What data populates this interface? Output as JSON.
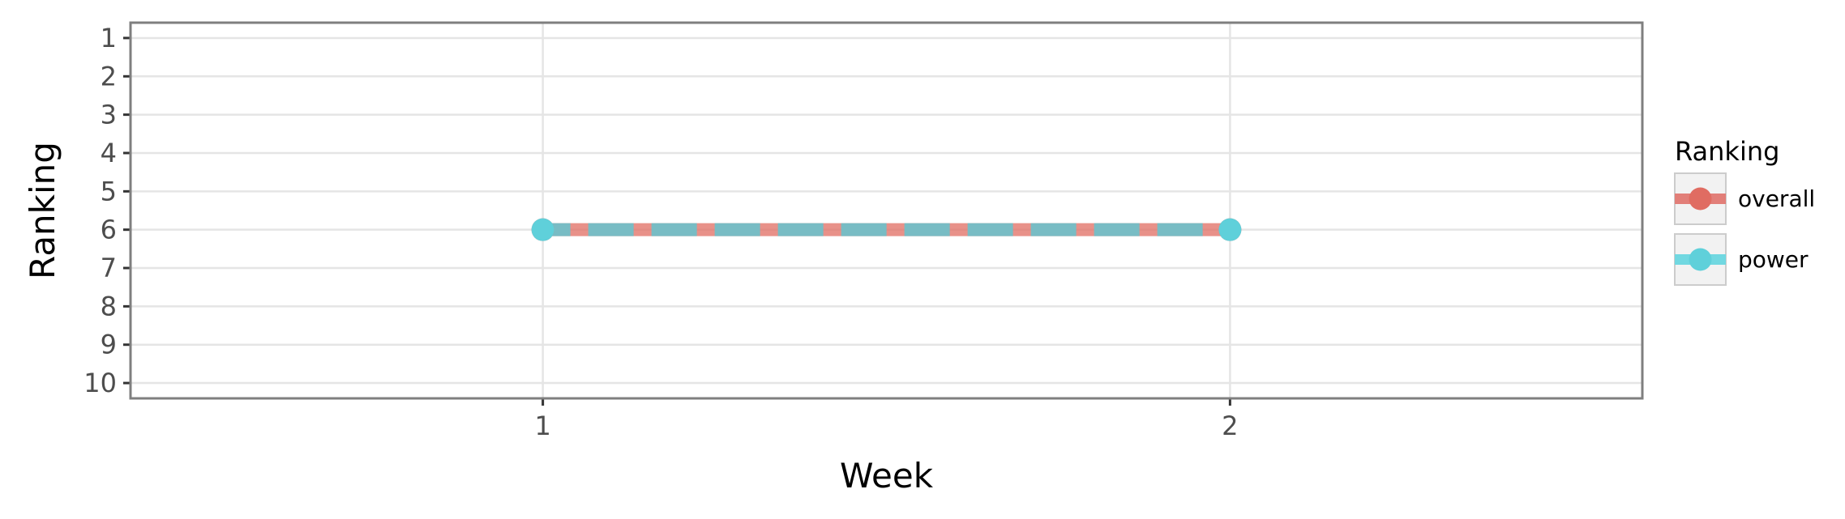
{
  "chart_data": {
    "type": "line",
    "xlabel": "Week",
    "ylabel": "Ranking",
    "x": [
      1,
      2
    ],
    "x_ticks": [
      "1",
      "2"
    ],
    "xlim": [
      0.4,
      2.6
    ],
    "y_ticks": [
      "1",
      "2",
      "3",
      "4",
      "5",
      "6",
      "7",
      "8",
      "9",
      "10"
    ],
    "ylim": [
      10.4,
      0.6
    ],
    "y_reversed": true,
    "grid": true,
    "legend": {
      "title": "Ranking",
      "placement": "right"
    },
    "series": [
      {
        "name": "overall",
        "values": [
          6,
          6
        ],
        "color": "#e06c62",
        "line_style": "dashed",
        "marker": "circle"
      },
      {
        "name": "power",
        "values": [
          6,
          6
        ],
        "color": "#5fd0da",
        "line_style": "solid",
        "marker": "circle"
      }
    ]
  }
}
